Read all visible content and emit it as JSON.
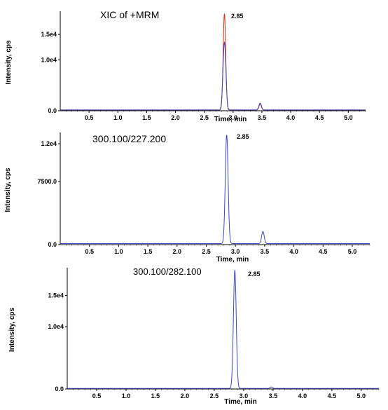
{
  "chart_data": [
    {
      "type": "line",
      "title": "XIC of +MRM",
      "peak_label": "2.85",
      "xlabel": "Time, min",
      "ylabel": "Intensity, cps",
      "xlim": [
        0.0,
        5.3
      ],
      "ylim": [
        0,
        19000
      ],
      "x_ticks": [
        "0.5",
        "1.0",
        "1.5",
        "2.0",
        "2.5",
        "3.0",
        "3.5",
        "4.0",
        "4.5",
        "5.0"
      ],
      "y_ticks": [
        {
          "value": 0,
          "label": "0.0"
        },
        {
          "value": 10000,
          "label": "1.0e4"
        },
        {
          "value": 15000,
          "label": "1.5e4"
        }
      ],
      "colors": {
        "red": "#d2301a",
        "blue": "#3a48c2"
      },
      "series": [
        {
          "color": "red",
          "baseline": 150,
          "peaks": [
            {
              "x": 2.85,
              "y": 19000,
              "w": 0.022
            },
            {
              "x": 3.47,
              "y": 1200,
              "w": 0.02
            }
          ]
        },
        {
          "color": "blue",
          "baseline": 150,
          "peaks": [
            {
              "x": 2.85,
              "y": 13300,
              "w": 0.025
            },
            {
              "x": 3.47,
              "y": 1350,
              "w": 0.022
            }
          ]
        }
      ]
    },
    {
      "type": "line",
      "title": "300.100/227.200",
      "peak_label": "2.85",
      "xlabel": "Time, min",
      "ylabel": "Intensity, cps",
      "xlim": [
        0.0,
        5.3
      ],
      "ylim": [
        0,
        13000
      ],
      "x_ticks": [
        "0.5",
        "1.0",
        "1.5",
        "2.0",
        "2.5",
        "3.0",
        "3.5",
        "4.0",
        "4.5",
        "5.0"
      ],
      "y_ticks": [
        {
          "value": 0,
          "label": "0.0"
        },
        {
          "value": 7500,
          "label": "7500.0"
        },
        {
          "value": 12000,
          "label": "1.2e4"
        }
      ],
      "colors": {
        "blue": "#3a48c2"
      },
      "series": [
        {
          "color": "blue",
          "baseline": 120,
          "peaks": [
            {
              "x": 2.85,
              "y": 13000,
              "w": 0.024
            },
            {
              "x": 3.47,
              "y": 1450,
              "w": 0.022
            }
          ]
        }
      ]
    },
    {
      "type": "line",
      "title": "300.100/282.100",
      "peak_label": "2.85",
      "xlabel": "Time, min",
      "ylabel": "Intensity, cps",
      "xlim": [
        0.0,
        5.3
      ],
      "ylim": [
        0,
        19000
      ],
      "x_ticks": [
        "0.5",
        "1.0",
        "1.5",
        "2.0",
        "2.5",
        "3.0",
        "3.5",
        "4.0",
        "4.5",
        "5.0"
      ],
      "y_ticks": [
        {
          "value": 0,
          "label": "0.0"
        },
        {
          "value": 10000,
          "label": "1.0e4"
        },
        {
          "value": 15000,
          "label": "1.5e4"
        }
      ],
      "colors": {
        "blue": "#3a48c2"
      },
      "series": [
        {
          "color": "blue",
          "baseline": 80,
          "peaks": [
            {
              "x": 2.85,
              "y": 19000,
              "w": 0.024
            },
            {
              "x": 3.47,
              "y": 250,
              "w": 0.02
            }
          ]
        }
      ]
    }
  ]
}
